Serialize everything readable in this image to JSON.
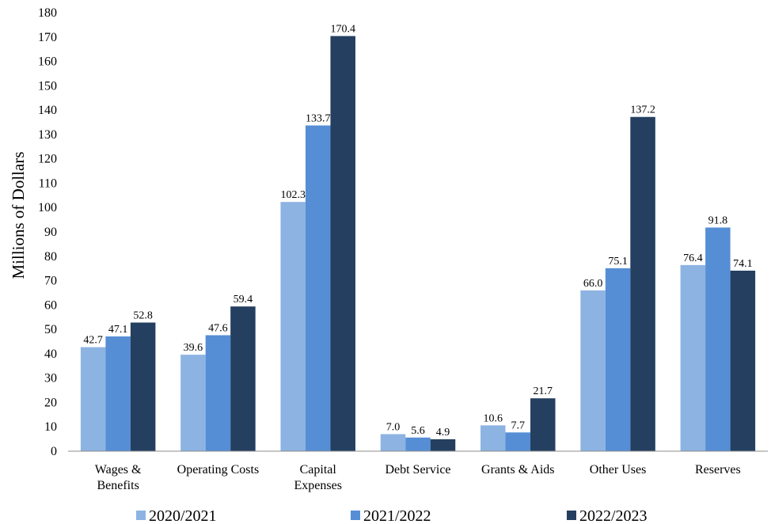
{
  "chart_data": {
    "type": "bar",
    "title": "",
    "xlabel": "",
    "ylabel": "Millions of Dollars",
    "ylim": [
      0,
      180
    ],
    "ytick_step": 10,
    "grid": false,
    "legend_position": "bottom",
    "categories": [
      [
        "Wages &",
        "Benefits"
      ],
      [
        "Operating Costs"
      ],
      [
        "Capital",
        "Expenses"
      ],
      [
        "Debt Service"
      ],
      [
        "Grants & Aids"
      ],
      [
        "Other Uses"
      ],
      [
        "Reserves"
      ]
    ],
    "series": [
      {
        "name": "2020/2021",
        "color": "#8DB3E2",
        "values": [
          42.7,
          39.6,
          102.3,
          7.0,
          10.6,
          66.0,
          76.4
        ],
        "labels": [
          "42.7",
          "39.6",
          "102.3",
          "7.0",
          "10.6",
          "66.0",
          "76.4"
        ]
      },
      {
        "name": "2021/2022",
        "color": "#558ED5",
        "values": [
          47.1,
          47.6,
          133.7,
          5.6,
          7.7,
          75.1,
          91.8
        ],
        "labels": [
          "47.1",
          "47.6",
          "133.7",
          "5.6",
          "7.7",
          "75.1",
          "91.8"
        ]
      },
      {
        "name": "2022/2023",
        "color": "#243F60",
        "values": [
          52.8,
          59.4,
          170.4,
          4.9,
          21.7,
          137.2,
          74.1
        ],
        "labels": [
          "52.8",
          "59.4",
          "170.4",
          "4.9",
          "21.7",
          "137.2",
          "74.1"
        ]
      }
    ]
  }
}
